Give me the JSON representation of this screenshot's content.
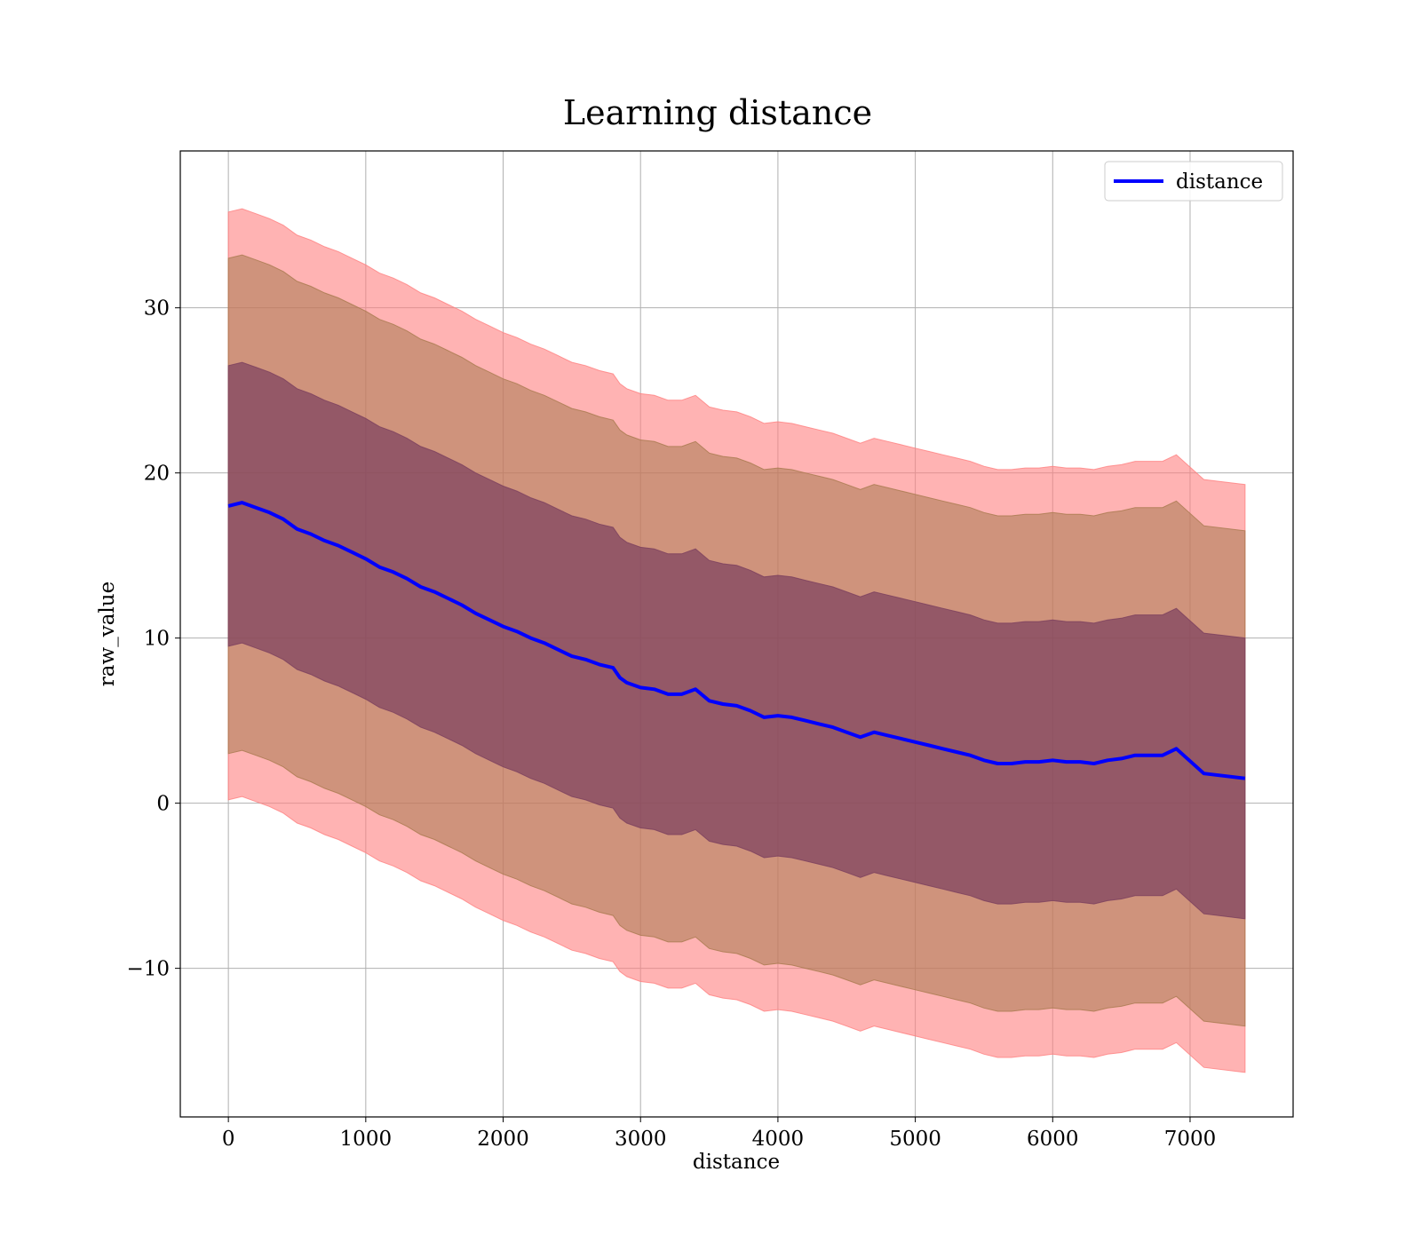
{
  "chart_data": {
    "type": "line",
    "title": "Learning distance",
    "xlabel": "distance",
    "ylabel": "raw_value",
    "xlim": [
      -350,
      7750
    ],
    "ylim": [
      -19,
      39.5
    ],
    "xticks": [
      0,
      1000,
      2000,
      3000,
      4000,
      5000,
      6000,
      7000
    ],
    "yticks": [
      -10,
      0,
      10,
      20,
      30
    ],
    "grid": true,
    "legend": {
      "position": "top-right",
      "entries": [
        "distance"
      ]
    },
    "colors": {
      "line": "#0000ff",
      "band_outer": "#ff8080",
      "band_middle": "#a8794e",
      "band_inner": "#7a3f5e"
    },
    "x": [
      0,
      100,
      200,
      300,
      400,
      500,
      600,
      700,
      800,
      900,
      1000,
      1100,
      1200,
      1300,
      1400,
      1500,
      1600,
      1700,
      1800,
      1900,
      2000,
      2100,
      2200,
      2300,
      2400,
      2500,
      2600,
      2700,
      2800,
      2850,
      2900,
      3000,
      3100,
      3200,
      3300,
      3400,
      3500,
      3600,
      3700,
      3800,
      3900,
      4000,
      4100,
      4200,
      4300,
      4400,
      4500,
      4600,
      4700,
      4800,
      4900,
      5000,
      5100,
      5200,
      5300,
      5400,
      5500,
      5600,
      5700,
      5800,
      5900,
      6000,
      6100,
      6200,
      6300,
      6400,
      6500,
      6600,
      6700,
      6800,
      6900,
      7100,
      7400
    ],
    "series": [
      {
        "name": "distance",
        "mean": [
          18.0,
          18.2,
          17.9,
          17.6,
          17.2,
          16.6,
          16.3,
          15.9,
          15.6,
          15.2,
          14.8,
          14.3,
          14.0,
          13.6,
          13.1,
          12.8,
          12.4,
          12.0,
          11.5,
          11.1,
          10.7,
          10.4,
          10.0,
          9.7,
          9.3,
          8.9,
          8.7,
          8.4,
          8.2,
          7.6,
          7.3,
          7.0,
          6.9,
          6.6,
          6.6,
          6.9,
          6.2,
          6.0,
          5.9,
          5.6,
          5.2,
          5.3,
          5.2,
          5.0,
          4.8,
          4.6,
          4.3,
          4.0,
          4.3,
          4.1,
          3.9,
          3.7,
          3.5,
          3.3,
          3.1,
          2.9,
          2.6,
          2.4,
          2.4,
          2.5,
          2.5,
          2.6,
          2.5,
          2.5,
          2.4,
          2.6,
          2.7,
          2.9,
          2.9,
          2.9,
          3.3,
          1.8,
          1.5
        ],
        "band_offsets": [
          8.5,
          15.0,
          17.8
        ]
      }
    ]
  }
}
